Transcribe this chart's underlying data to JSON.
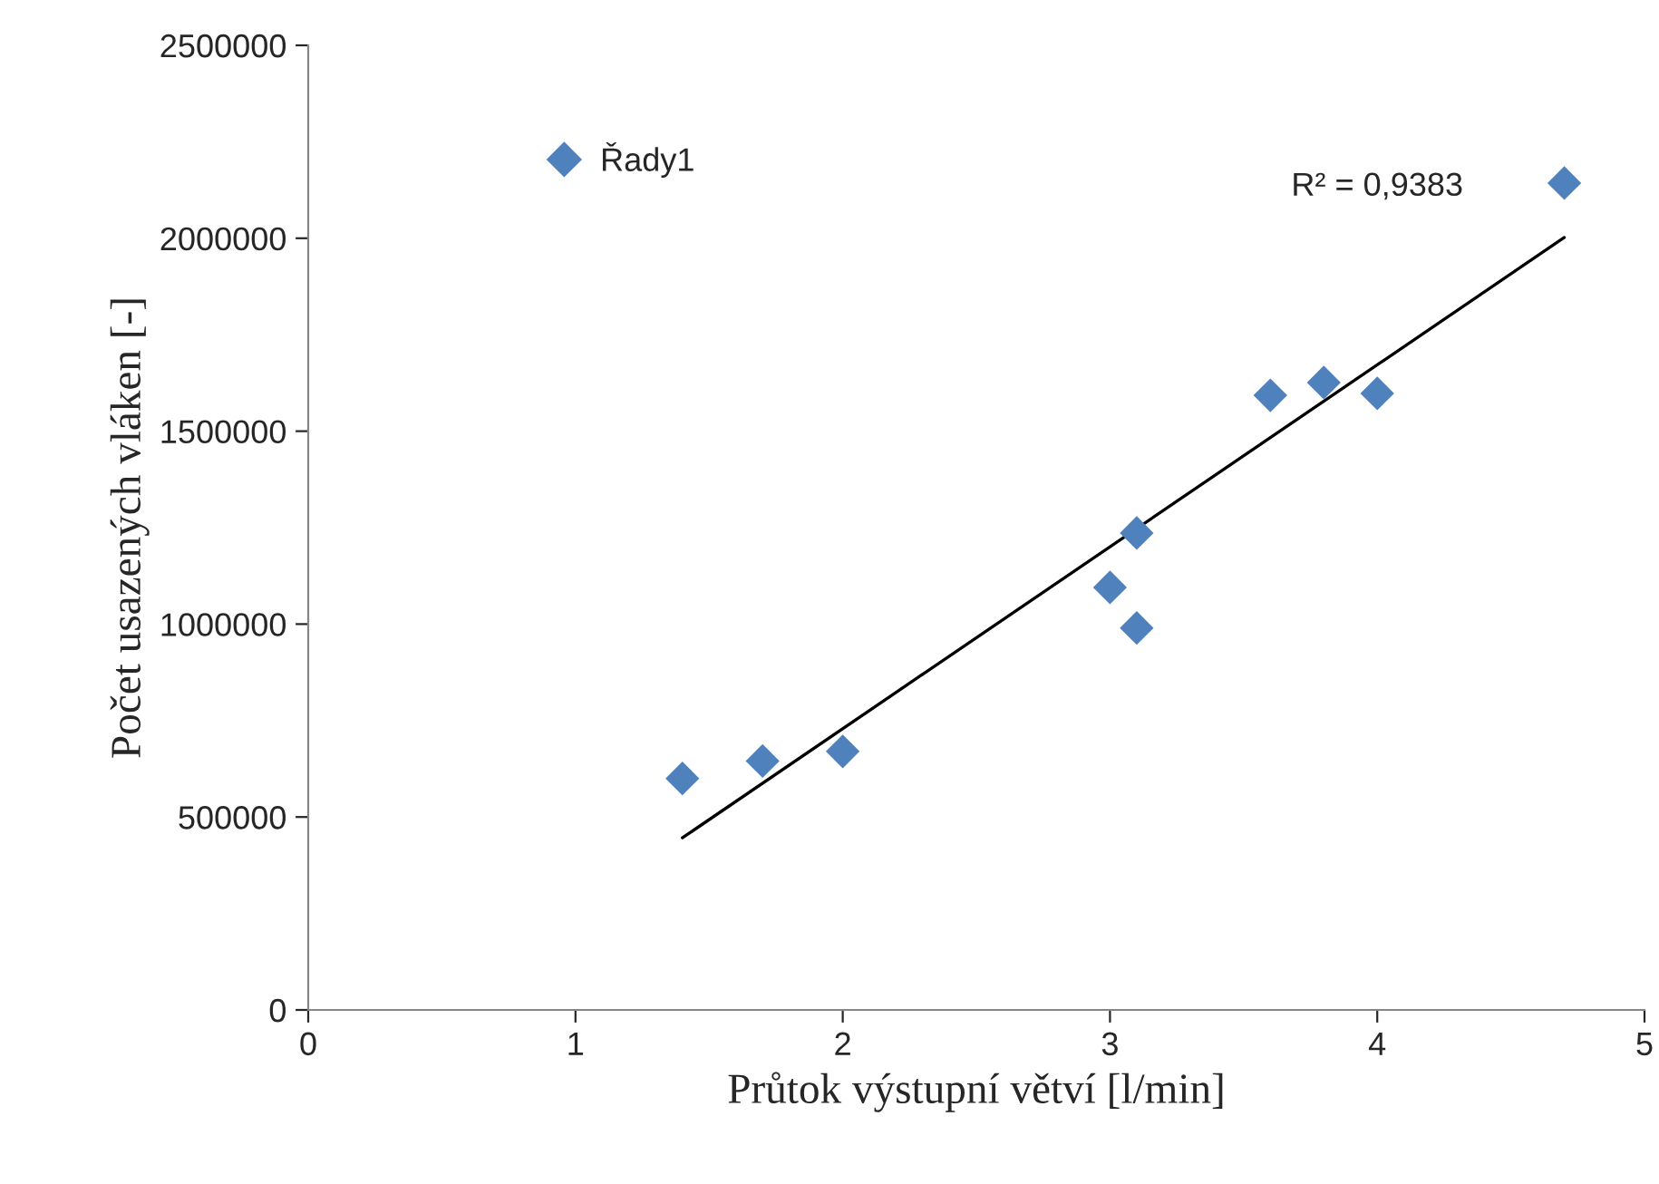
{
  "chart_data": {
    "type": "scatter",
    "xlabel": "Průtok výstupní větví [l/min]",
    "ylabel": "Počet usazených vláken [-]",
    "xlim": [
      0,
      5
    ],
    "xticks": [
      0,
      1,
      2,
      3,
      4,
      5
    ],
    "ylim": [
      0,
      2500000
    ],
    "yticks": [
      0,
      500000,
      1000000,
      1500000,
      2000000,
      2500000
    ],
    "grid": false,
    "legend": "top left",
    "series": [
      {
        "name": "Řady1",
        "color": "#4f81bd",
        "marker": "diamond",
        "x": [
          1.4,
          1.7,
          2.0,
          3.0,
          3.1,
          3.1,
          3.6,
          3.8,
          4.0,
          4.7
        ],
        "values": [
          600000,
          645000,
          670000,
          1095000,
          1236000,
          990000,
          1593000,
          1626000,
          1598000,
          2143000
        ]
      },
      {
        "type": "line",
        "color": "#000000",
        "x": [
          1.4,
          4.7
        ],
        "values": [
          446000,
          2002000
        ]
      }
    ],
    "annotations": [
      "R² = 0,9383"
    ]
  }
}
